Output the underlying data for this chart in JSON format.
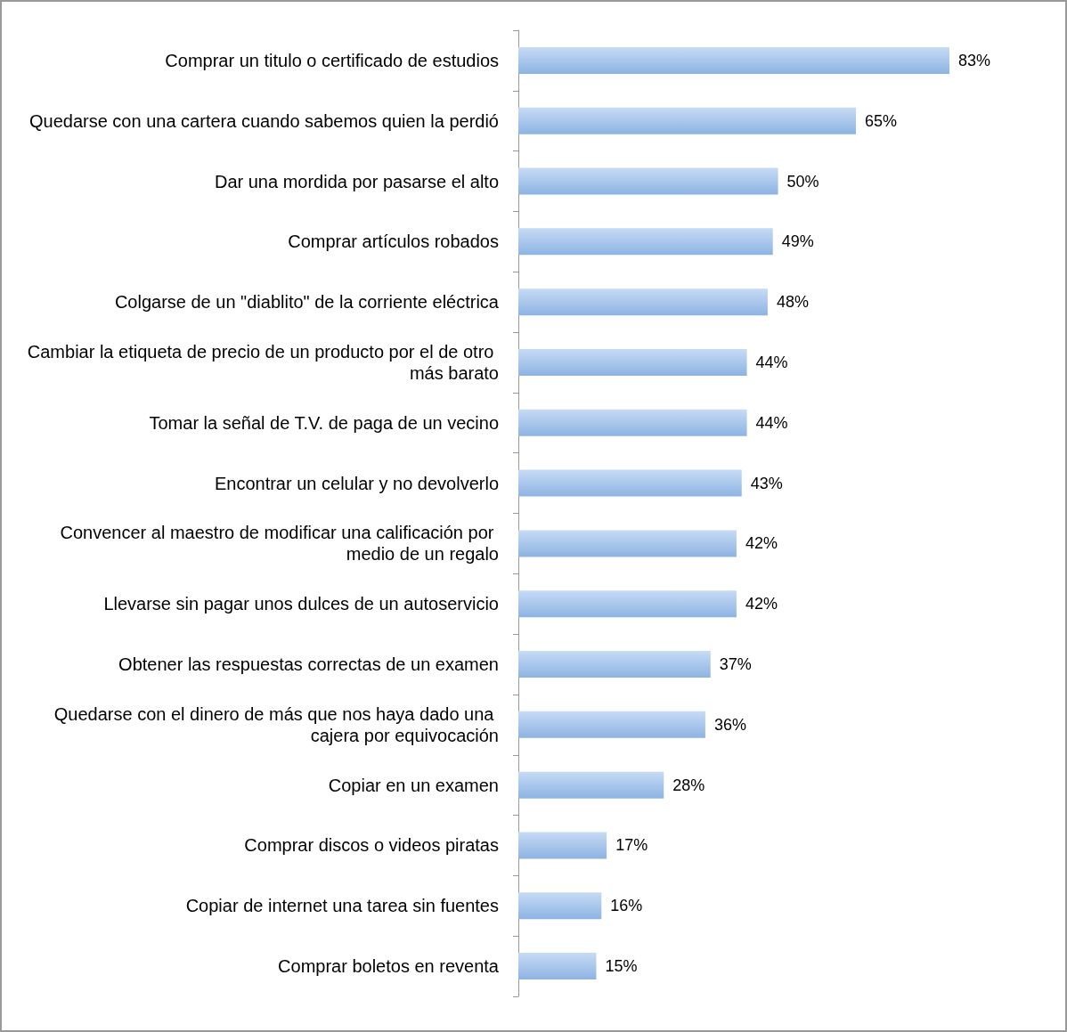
{
  "chart_data": {
    "type": "bar",
    "orientation": "horizontal",
    "color": "#8db3e2",
    "categories": [
      "Comprar un titulo o certificado de estudios",
      "Quedarse con una cartera cuando sabemos quien la perdió",
      "Dar una mordida por pasarse el alto",
      "Comprar artículos robados",
      "Colgarse de un \"diablito\" de la corriente eléctrica",
      "Cambiar la etiqueta de precio de un producto por el de otro más barato",
      "Tomar la señal de T.V. de paga de un vecino",
      "Encontrar un celular y no devolverlo",
      "Convencer al maestro de modificar una calificación por medio de un regalo",
      "Llevarse sin pagar unos dulces de un autoservicio",
      "Obtener las respuestas correctas de un examen",
      "Quedarse con el dinero de más que nos haya dado una cajera por equivocación",
      "Copiar en un examen",
      "Comprar discos o videos piratas",
      "Copiar de internet una tarea sin fuentes",
      "Comprar boletos en reventa"
    ],
    "values": [
      83,
      65,
      50,
      49,
      48,
      44,
      44,
      43,
      42,
      42,
      37,
      36,
      28,
      17,
      16,
      15
    ],
    "value_labels": [
      "83%",
      "65%",
      "50%",
      "49%",
      "48%",
      "44%",
      "44%",
      "43%",
      "42%",
      "42%",
      "37%",
      "36%",
      "28%",
      "17%",
      "16%",
      "15%"
    ]
  }
}
